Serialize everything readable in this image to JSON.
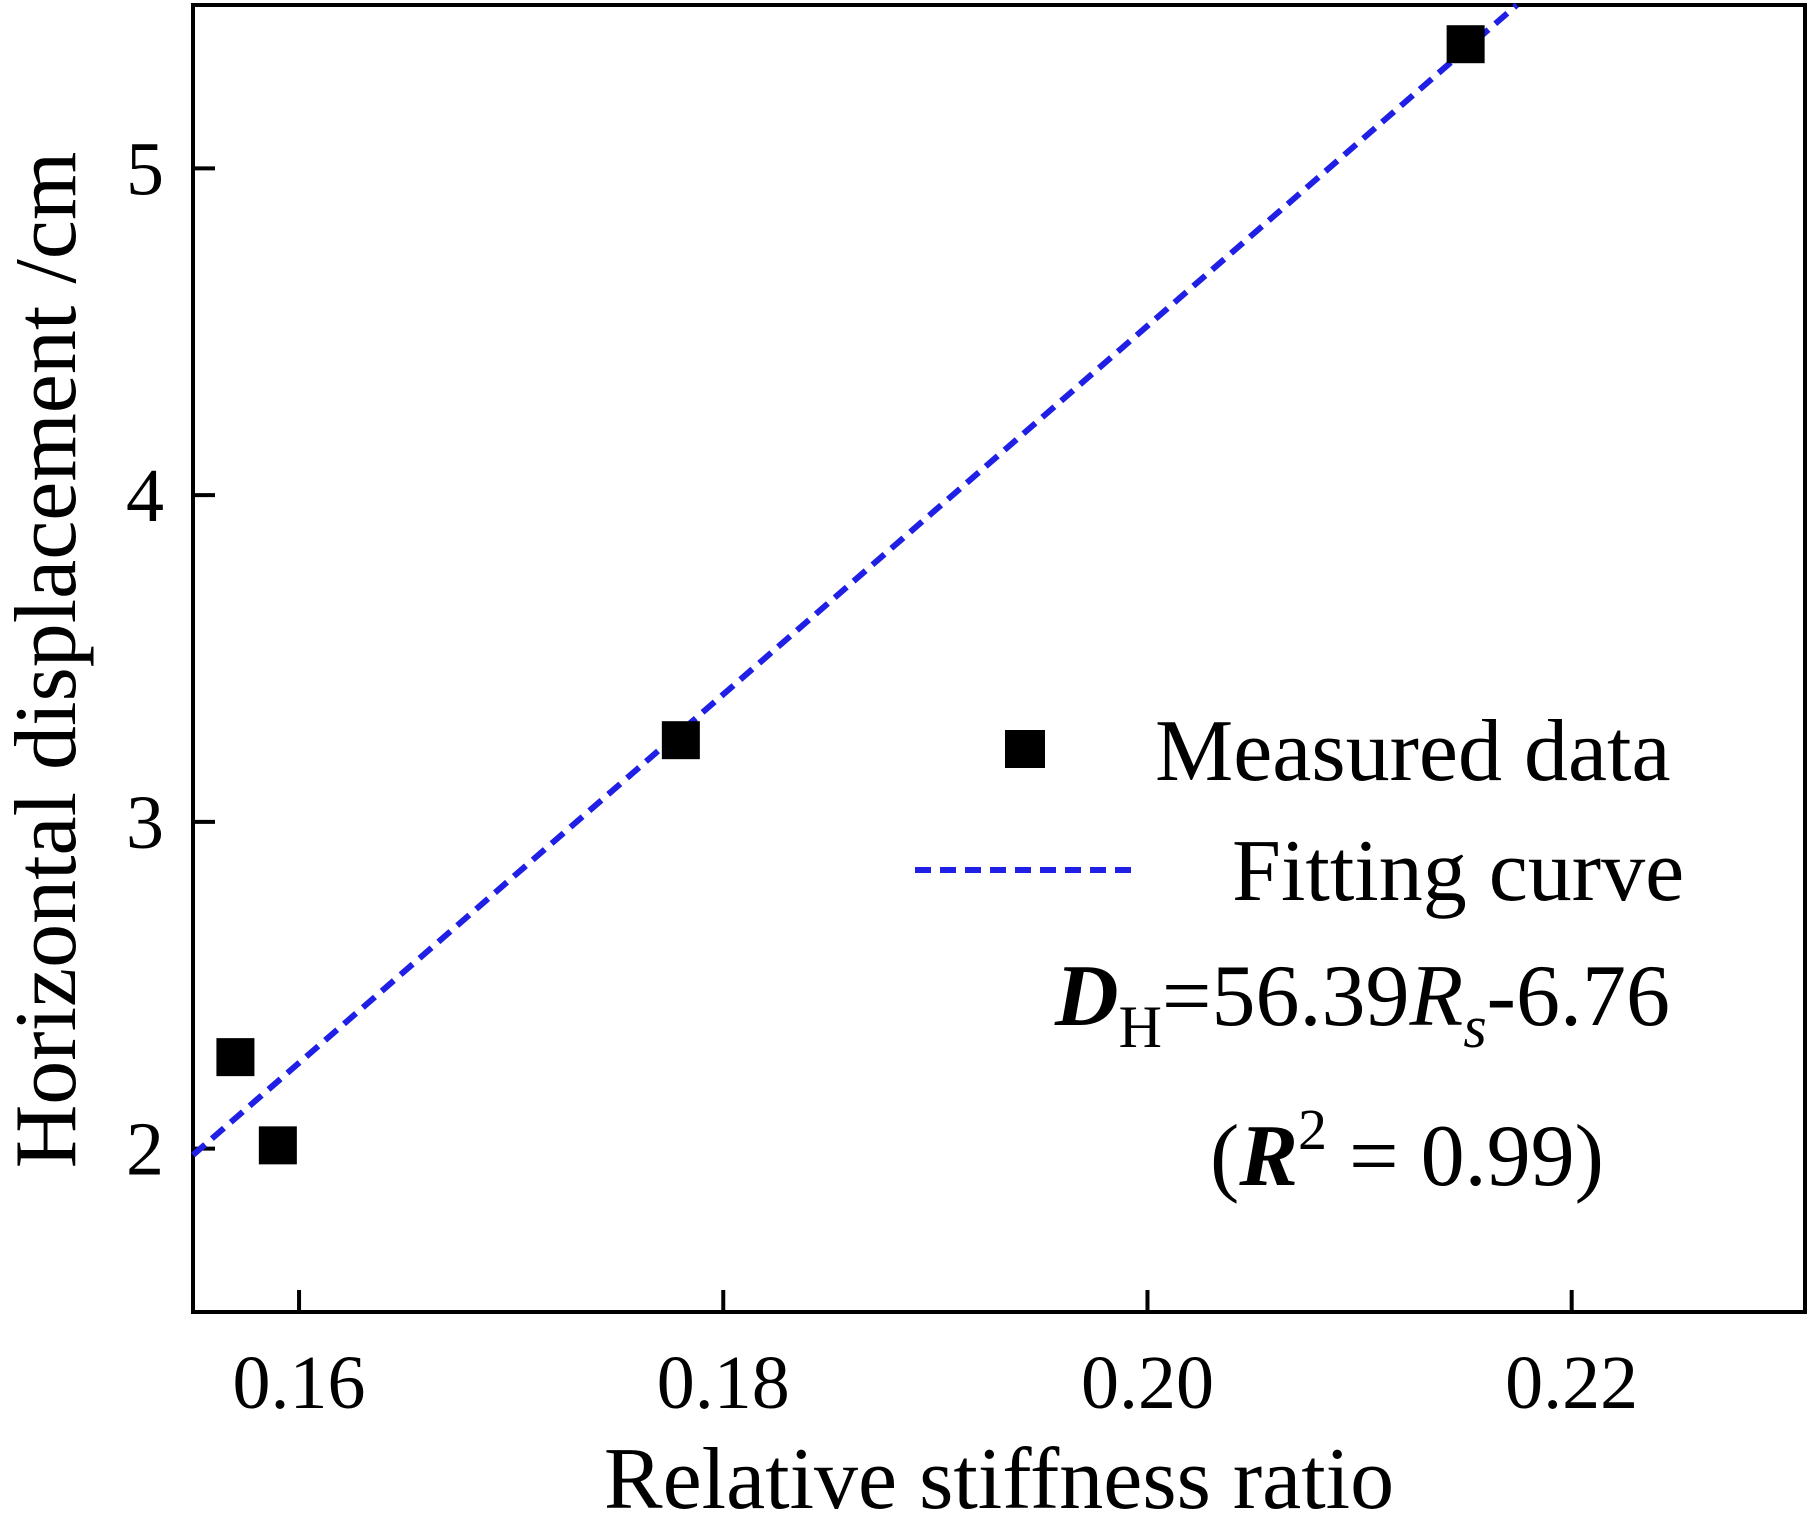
{
  "chart_data": {
    "type": "scatter",
    "xlabel": "Relative stiffness ratio",
    "ylabel": "Horizontal displacement /cm",
    "xlim": [
      0.155,
      0.231
    ],
    "ylim": [
      1.5,
      5.5
    ],
    "xticks": [
      0.16,
      0.18,
      0.2,
      0.22
    ],
    "xtick_labels": [
      "0.16",
      "0.18",
      "0.20",
      "0.22"
    ],
    "yticks": [
      2,
      3,
      4,
      5
    ],
    "ytick_labels": [
      "2",
      "3",
      "4",
      "5"
    ],
    "grid": false,
    "legend_placement": "right",
    "series": [
      {
        "name": "Measured data",
        "kind": "scatter",
        "marker": "square",
        "color": "#000000",
        "x": [
          0.157,
          0.159,
          0.178,
          0.215
        ],
        "y": [
          2.28,
          2.01,
          3.25,
          5.38
        ]
      },
      {
        "name": "Fitting curve",
        "kind": "line",
        "style": "dashed",
        "color": "#1f1fe6",
        "slope": 56.39,
        "intercept": -6.76
      }
    ],
    "annotation": {
      "eq_D": "D",
      "eq_D_sub": "H",
      "eq_mid": "=56.39",
      "eq_R": "R",
      "eq_R_sub": "s",
      "eq_tail": "-6.76",
      "r2_open": "(",
      "r2_R": "R",
      "r2_sup": "2",
      "r2_rest": " = 0.99)"
    }
  }
}
